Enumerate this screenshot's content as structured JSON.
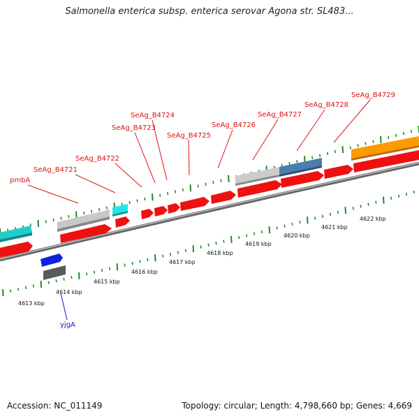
{
  "title": "Salmonella enterica subsp. enterica serovar Agona str. SL483...",
  "accession": "Accession: NC_011149",
  "summary": "Topology: circular; Length: 4,798,660 bp; Genes: 4,669",
  "colors": {
    "cds": "#ee1111",
    "label_red": "#dd1111",
    "label_blue": "#1111dd",
    "cyan": "#22cccc",
    "gray": "#bbbbbb",
    "darkgray": "#666666",
    "steelblue": "#4477aa",
    "orange": "#ff9900",
    "blue": "#1122dd",
    "backbone": "#888888",
    "tick": "#228822"
  },
  "position_labels": [
    "4613 kbp",
    "4614 kbp",
    "4615 kbp",
    "4616 kbp",
    "4617 kbp",
    "4618 kbp",
    "4619 kbp",
    "4620 kbp",
    "4621 kbp",
    "4622 kbp"
  ],
  "gene_labels": [
    "pmbA",
    "SeAg_B4721",
    "SeAg_B4722",
    "SeAg_B4723",
    "SeAg_B4724",
    "SeAg_B4725",
    "SeAg_B4726",
    "SeAg_B4727",
    "SeAg_B4728",
    "SeAg_B4729",
    "yjgA"
  ]
}
